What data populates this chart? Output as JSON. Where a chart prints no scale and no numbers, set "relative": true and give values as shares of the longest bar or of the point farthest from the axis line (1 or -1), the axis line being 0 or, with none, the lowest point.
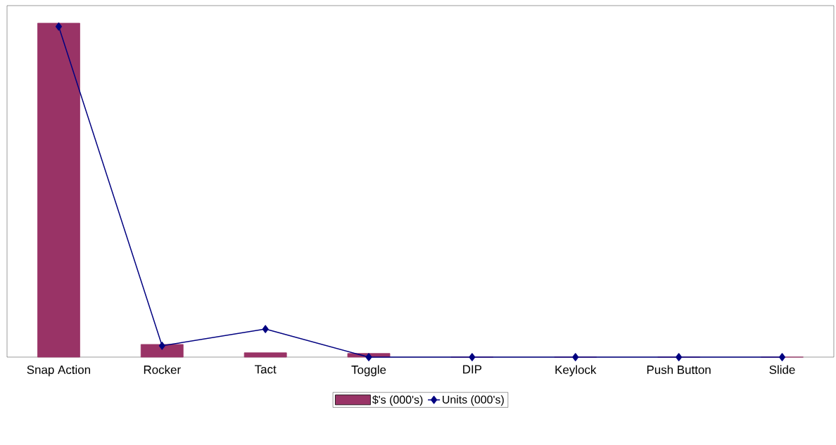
{
  "chart_data": {
    "type": "bar",
    "relative": true,
    "legend": "bottom",
    "categories": [
      "Snap Action",
      "Rocker",
      "Tact",
      "Toggle",
      "DIP",
      "Keylock",
      "Push Button",
      "Slide"
    ],
    "series": [
      {
        "name": "$'s (000's)",
        "color": "#993366",
        "values": [
          1,
          0.038,
          0.013,
          0.011,
          0,
          0,
          0,
          0
        ]
      },
      {
        "name": "Units (000's)",
        "type": "line",
        "color": "#000080",
        "marker": "diamond",
        "values": [
          0.99,
          0.034,
          0.084,
          0,
          0,
          0,
          0,
          0
        ]
      }
    ]
  }
}
